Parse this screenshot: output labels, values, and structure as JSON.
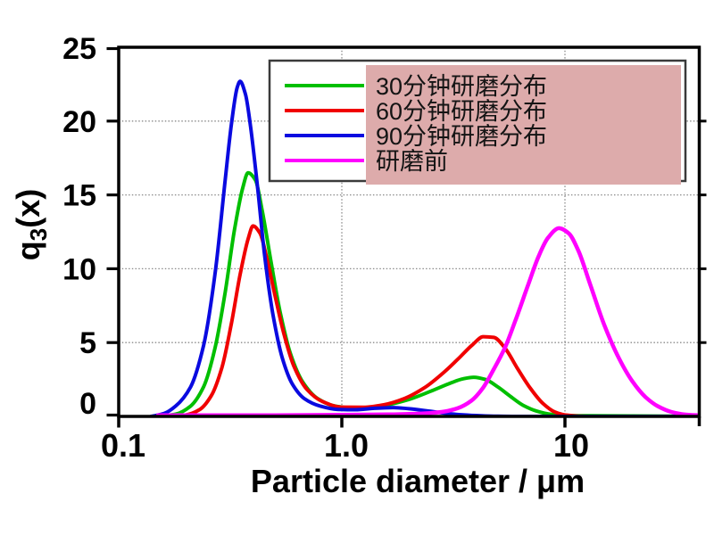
{
  "figure": {
    "background": "#ffffff"
  },
  "chart_data": {
    "type": "line",
    "title": "",
    "xlabel": "Particle diameter / μm",
    "ylabel": "q3(x)",
    "ylabel_parts": {
      "base": "q",
      "sub": "3",
      "rest": "(x)"
    },
    "x_scale": "log",
    "xlim": [
      0.1,
      40
    ],
    "ylim": [
      0,
      25
    ],
    "x_tick_labels": [
      "0.1",
      "1.0",
      "10"
    ],
    "x_tick_values": [
      0.1,
      1.0,
      10
    ],
    "y_tick_labels": [
      "0",
      "5",
      "10",
      "15",
      "20",
      "25"
    ],
    "y_tick_values": [
      0,
      5,
      10,
      15,
      20,
      25
    ],
    "grid": {
      "style": "dotted",
      "color": "#8a8a8a",
      "y_values": [
        5,
        10,
        15,
        20
      ],
      "x_values": [
        1.0,
        10
      ]
    },
    "legend": {
      "position": "top",
      "fill": "#ffffff",
      "border": "#3a3a3a"
    },
    "overlay": {
      "type": "highlight-rectangle",
      "color": "#ddabab"
    },
    "series": [
      {
        "name": "30分钟研磨分布",
        "color": "#00bf00",
        "points": [
          [
            0.15,
            0
          ],
          [
            0.18,
            0.15
          ],
          [
            0.21,
            0.7
          ],
          [
            0.24,
            2.0
          ],
          [
            0.27,
            4.6
          ],
          [
            0.3,
            8.4
          ],
          [
            0.33,
            12.6
          ],
          [
            0.36,
            15.5
          ],
          [
            0.38,
            16.5
          ],
          [
            0.41,
            16.0
          ],
          [
            0.44,
            13.9
          ],
          [
            0.48,
            10.6
          ],
          [
            0.53,
            7.0
          ],
          [
            0.59,
            4.2
          ],
          [
            0.67,
            2.3
          ],
          [
            0.78,
            1.2
          ],
          [
            0.92,
            0.72
          ],
          [
            1.1,
            0.58
          ],
          [
            1.35,
            0.62
          ],
          [
            1.65,
            0.82
          ],
          [
            2.0,
            1.15
          ],
          [
            2.5,
            1.7
          ],
          [
            3.0,
            2.2
          ],
          [
            3.5,
            2.55
          ],
          [
            3.9,
            2.65
          ],
          [
            4.4,
            2.5
          ],
          [
            5.0,
            2.0
          ],
          [
            5.7,
            1.35
          ],
          [
            6.5,
            0.75
          ],
          [
            7.5,
            0.35
          ],
          [
            8.7,
            0.13
          ],
          [
            10,
            0.06
          ],
          [
            13,
            0.04
          ],
          [
            20,
            0.03
          ],
          [
            30,
            0.02
          ],
          [
            40,
            0.02
          ]
        ]
      },
      {
        "name": "60分钟研磨分布",
        "color": "#f00000",
        "points": [
          [
            0.17,
            0
          ],
          [
            0.2,
            0.1
          ],
          [
            0.23,
            0.45
          ],
          [
            0.26,
            1.4
          ],
          [
            0.29,
            3.3
          ],
          [
            0.32,
            6.3
          ],
          [
            0.35,
            9.6
          ],
          [
            0.38,
            12.0
          ],
          [
            0.4,
            12.9
          ],
          [
            0.43,
            12.4
          ],
          [
            0.46,
            10.8
          ],
          [
            0.5,
            8.3
          ],
          [
            0.55,
            5.6
          ],
          [
            0.61,
            3.4
          ],
          [
            0.7,
            1.8
          ],
          [
            0.82,
            1.0
          ],
          [
            1.0,
            0.63
          ],
          [
            1.25,
            0.62
          ],
          [
            1.55,
            0.8
          ],
          [
            1.9,
            1.2
          ],
          [
            2.35,
            1.95
          ],
          [
            2.85,
            2.95
          ],
          [
            3.35,
            3.95
          ],
          [
            3.85,
            4.85
          ],
          [
            4.3,
            5.4
          ],
          [
            4.8,
            5.35
          ],
          [
            5.4,
            4.6
          ],
          [
            6.1,
            3.3
          ],
          [
            7.0,
            1.9
          ],
          [
            8.0,
            0.85
          ],
          [
            9.0,
            0.3
          ],
          [
            10,
            0.1
          ],
          [
            11.5,
            0.02
          ],
          [
            14,
            0
          ],
          [
            40,
            0
          ]
        ]
      },
      {
        "name": "90分钟研磨分布",
        "color": "#0a0ae0",
        "points": [
          [
            0.14,
            0
          ],
          [
            0.16,
            0.2
          ],
          [
            0.18,
            0.7
          ],
          [
            0.21,
            2.0
          ],
          [
            0.24,
            4.8
          ],
          [
            0.27,
            9.6
          ],
          [
            0.3,
            16.0
          ],
          [
            0.32,
            19.8
          ],
          [
            0.34,
            22.3
          ],
          [
            0.35,
            22.7
          ],
          [
            0.37,
            21.8
          ],
          [
            0.39,
            19.6
          ],
          [
            0.42,
            15.4
          ],
          [
            0.45,
            11.0
          ],
          [
            0.49,
            7.0
          ],
          [
            0.54,
            4.0
          ],
          [
            0.6,
            2.2
          ],
          [
            0.68,
            1.2
          ],
          [
            0.8,
            0.7
          ],
          [
            0.95,
            0.48
          ],
          [
            1.15,
            0.45
          ],
          [
            1.4,
            0.55
          ],
          [
            1.7,
            0.6
          ],
          [
            2.0,
            0.52
          ],
          [
            2.4,
            0.38
          ],
          [
            2.9,
            0.22
          ],
          [
            3.5,
            0.1
          ],
          [
            4.2,
            0.04
          ],
          [
            5.0,
            0.01
          ],
          [
            6,
            0
          ],
          [
            40,
            0
          ]
        ]
      },
      {
        "name": "研磨前",
        "color": "#ff00ff",
        "points": [
          [
            0.15,
            0.08
          ],
          [
            0.5,
            0.08
          ],
          [
            1.0,
            0.1
          ],
          [
            1.6,
            0.13
          ],
          [
            2.2,
            0.18
          ],
          [
            2.8,
            0.3
          ],
          [
            3.3,
            0.55
          ],
          [
            3.8,
            1.05
          ],
          [
            4.3,
            1.95
          ],
          [
            4.8,
            3.2
          ],
          [
            5.4,
            4.7
          ],
          [
            6.0,
            6.5
          ],
          [
            6.8,
            8.8
          ],
          [
            7.6,
            10.8
          ],
          [
            8.4,
            12.1
          ],
          [
            9.4,
            12.75
          ],
          [
            10.4,
            12.4
          ],
          [
            11.5,
            11.2
          ],
          [
            13,
            8.9
          ],
          [
            15,
            6.2
          ],
          [
            17.5,
            3.9
          ],
          [
            20,
            2.4
          ],
          [
            23,
            1.3
          ],
          [
            26,
            0.7
          ],
          [
            30,
            0.3
          ],
          [
            34,
            0.14
          ],
          [
            40,
            0.07
          ]
        ]
      }
    ]
  }
}
